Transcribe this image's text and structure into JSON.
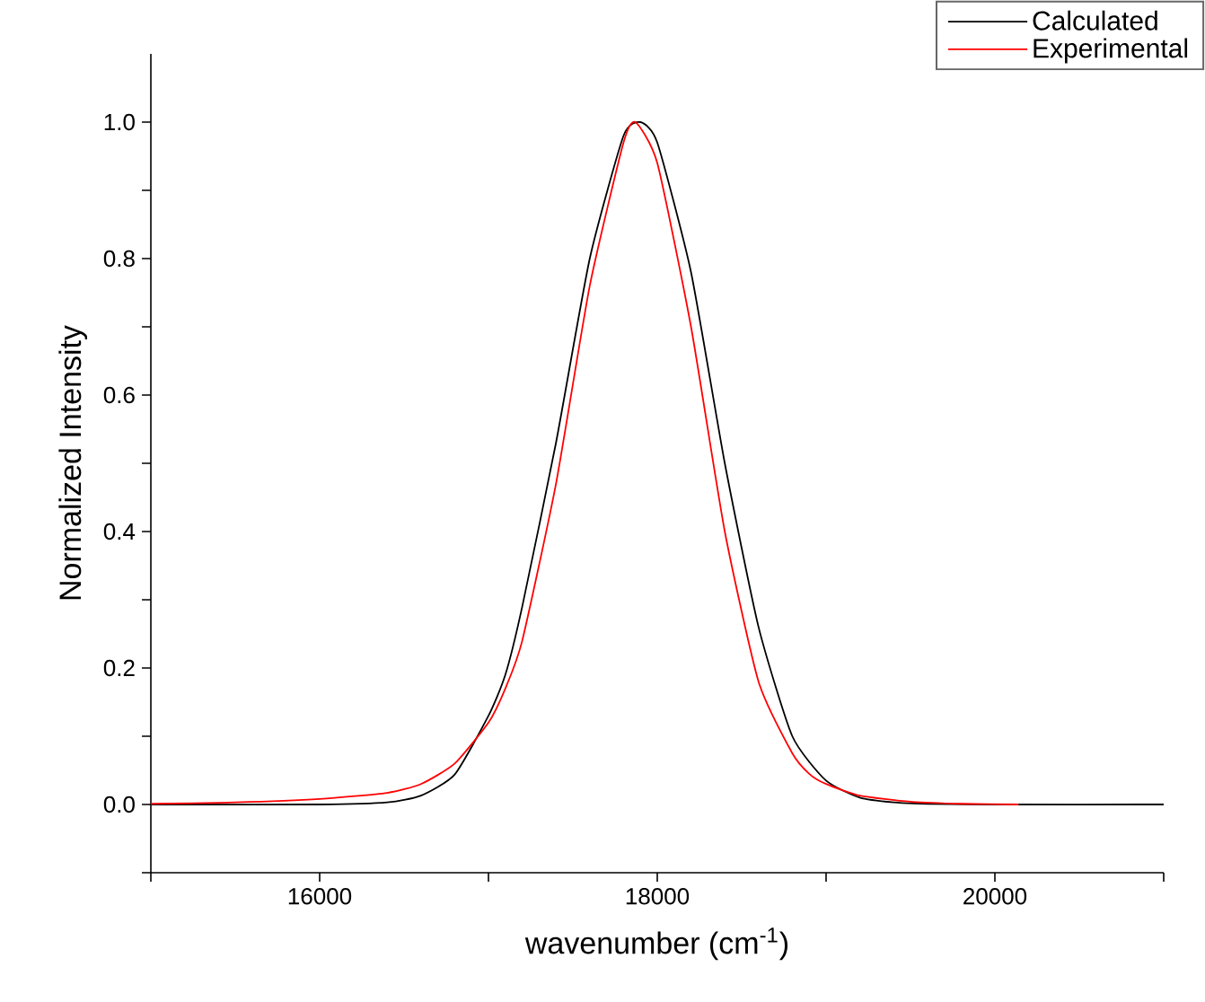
{
  "chart_data": {
    "type": "line",
    "xlabel": "wavenumber (cm$^{-1}$)",
    "ylabel": "Normalized Intensity",
    "xlim": [
      15000,
      21000
    ],
    "ylim": [
      -0.1,
      1.1
    ],
    "xticks": [
      {
        "value": 15000,
        "label": null
      },
      16000,
      {
        "value": 17000,
        "label": null
      },
      18000,
      {
        "value": 19000,
        "label": null
      },
      20000,
      {
        "value": 21000,
        "label": null
      }
    ],
    "yticks": [
      {
        "value": -0.1,
        "label": null
      },
      {
        "value": 0,
        "label": "0.0"
      },
      {
        "value": 0.1,
        "label": null
      },
      {
        "value": 0.2,
        "label": "0.2"
      },
      {
        "value": 0.3,
        "label": null
      },
      {
        "value": 0.4,
        "label": "0.4"
      },
      {
        "value": 0.5,
        "label": null
      },
      {
        "value": 0.6,
        "label": "0.6"
      },
      {
        "value": 0.7,
        "label": null
      },
      {
        "value": 0.8,
        "label": "0.8"
      },
      {
        "value": 0.9,
        "label": null
      },
      {
        "value": 1.0,
        "label": "1.0"
      }
    ],
    "legend": "top right",
    "series": [
      {
        "name": "Calculated",
        "color": "#000000",
        "x": [
          15000,
          16000,
          16400,
          16600,
          16800,
          17000,
          17100,
          17200,
          17400,
          17600,
          17800,
          17900,
          18000,
          18200,
          18400,
          18600,
          18800,
          19000,
          19200,
          19400,
          19600,
          20000,
          21000
        ],
        "values": [
          0,
          0,
          0.003,
          0.013,
          0.044,
          0.13,
          0.19,
          0.29,
          0.53,
          0.8,
          0.98,
          1.0,
          0.97,
          0.78,
          0.5,
          0.26,
          0.1,
          0.035,
          0.01,
          0.003,
          0.001,
          0,
          0
        ]
      },
      {
        "name": "Experimental",
        "color": "#ff0000",
        "x": [
          15000,
          15500,
          16000,
          16400,
          16600,
          16800,
          17000,
          17100,
          17200,
          17400,
          17600,
          17800,
          17870,
          18000,
          18200,
          18400,
          18600,
          18800,
          18900,
          19000,
          19200,
          19500,
          19800,
          20140
        ],
        "values": [
          0.001,
          0.003,
          0.008,
          0.017,
          0.03,
          0.06,
          0.12,
          0.17,
          0.24,
          0.47,
          0.76,
          0.97,
          1.0,
          0.94,
          0.7,
          0.4,
          0.18,
          0.075,
          0.045,
          0.03,
          0.013,
          0.004,
          0.001,
          0
        ]
      }
    ]
  }
}
